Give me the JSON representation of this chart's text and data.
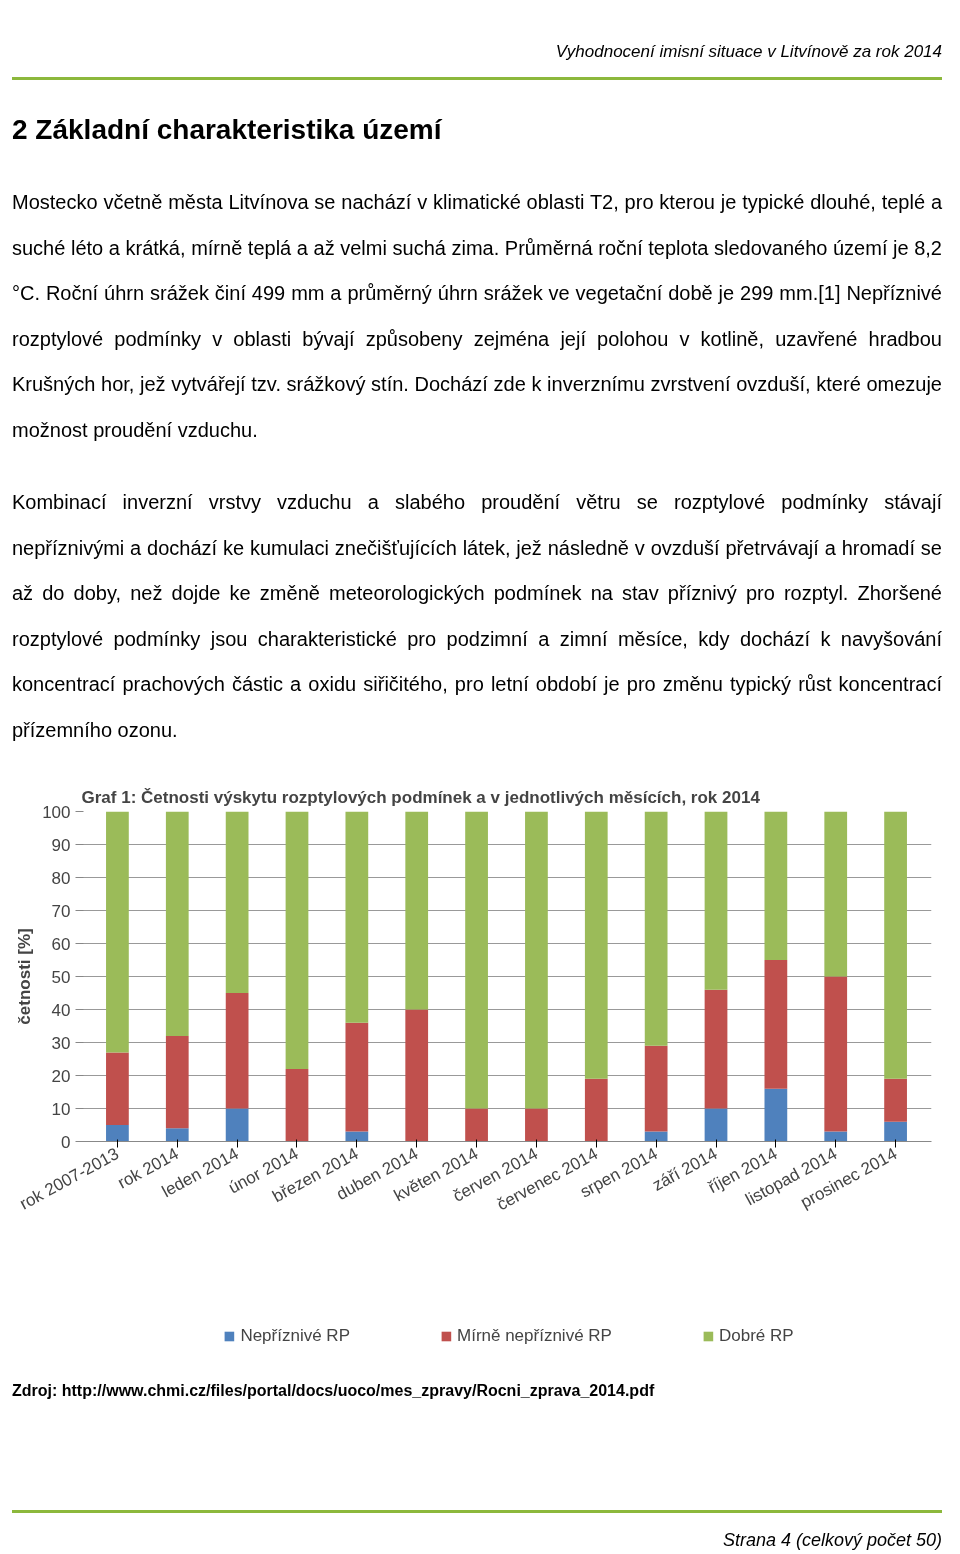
{
  "chart_data": {
    "type": "bar",
    "stacked": true,
    "title": "Graf 1: Četnosti výskytu rozptylových podmínek a v jednotlivých měsících, rok 2014",
    "ylabel": "četnosti [%]",
    "categories": [
      "rok 2007-2013",
      "rok 2014",
      "leden 2014",
      "únor 2014",
      "březen 2014",
      "duben 2014",
      "květen 2014",
      "červen 2014",
      "červenec 2014",
      "srpen 2014",
      "září 2014",
      "říjen 2014",
      "listopad 2014",
      "prosinec 2014"
    ],
    "series": [
      {
        "name": "Nepříznivé RP",
        "color": "#4f81bd",
        "values": [
          5,
          4,
          10,
          0,
          3,
          0,
          0,
          0,
          0,
          3,
          10,
          16,
          3,
          6
        ]
      },
      {
        "name": "Mírně nepříznivé RP",
        "color": "#c0504d",
        "values": [
          22,
          28,
          35,
          22,
          33,
          40,
          10,
          10,
          19,
          26,
          36,
          39,
          47,
          13
        ]
      },
      {
        "name": "Dobré RP",
        "color": "#9bbb59",
        "values": [
          73,
          68,
          55,
          78,
          64,
          60,
          90,
          90,
          81,
          71,
          54,
          45,
          50,
          81
        ]
      }
    ],
    "ylim": [
      0,
      100
    ],
    "yticks": [
      0,
      10,
      20,
      30,
      40,
      50,
      60,
      70,
      80,
      90,
      100
    ],
    "grid": "y",
    "legend": "bottom",
    "annotations": [
      "Vyhodnocení imisní situace v Litvínově za rok 2014",
      "2   Základní charakteristika území",
      "Mostecko včetně města Litvínova se nachází v klimatické oblasti T2, pro kterou je typické dlouhé, teplé a suché léto a krátká, mírně teplá a až velmi suchá zima. Průměrná roční teplota sledovaného území je 8,2 °C. Roční úhrn srážek činí 499 mm a průměrný úhrn srážek ve vegetační době je 299 mm.[1] Nepříznivé rozptylové podmínky v oblasti bývají způsobeny zejména její polohou v kotlině, uzavřené hradbou Krušných hor, jež vytvářejí tzv. srážkový stín. Dochází zde k inverznímu zvrstvení ovzduší, které omezuje možnost proudění vzduchu.",
      "Kombinací inverzní vrstvy vzduchu a slabého proudění větru se rozptylové podmínky stávají nepříznivými a dochází ke kumulaci znečišťujících látek, jež následně v ovzduší přetrvávají a hromadí se až do doby, než dojde ke změně meteorologických podmínek na stav příznivý pro rozptyl. Zhoršené rozptylové podmínky jsou charakteristické pro podzimní a zimní měsíce, kdy dochází k navyšování koncentrací prachových částic a oxidu siřičitého, pro letní období je pro změnu typický růst koncentrací přízemního ozonu.",
      "Zdroj: http://www.chmi.cz/files/portal/docs/uoco/mes_zpravy/Rocni_zprava_2014.pdf",
      "Strana 4 (celkový počet 50)"
    ]
  }
}
